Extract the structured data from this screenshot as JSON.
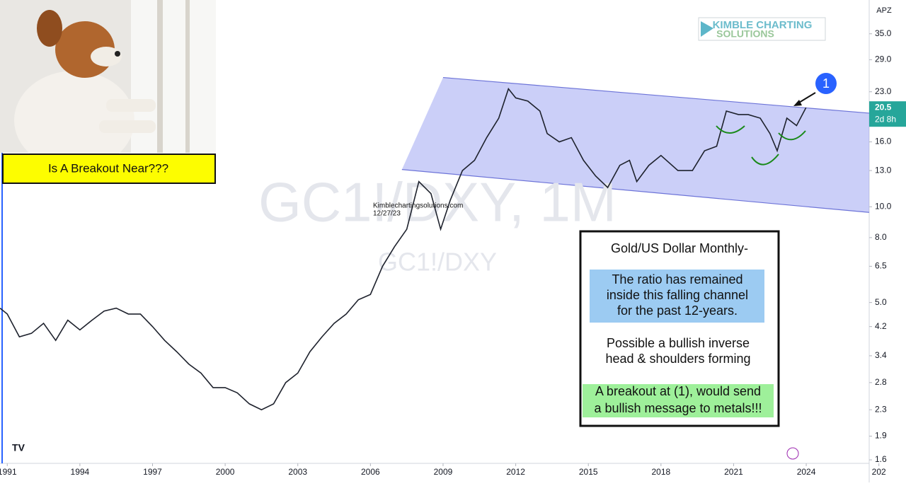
{
  "chart_data": {
    "type": "line",
    "watermark": "GC1!/DXY, 1M",
    "symbol": "GC1!/DXY",
    "currency": "APZ",
    "log_scale": true,
    "color": "#1e222d",
    "x": [
      1990.7,
      1991,
      1991.5,
      1992,
      1992.5,
      1993,
      1993.5,
      1994,
      1994.5,
      1995,
      1995.5,
      1996,
      1996.5,
      1997,
      1997.5,
      1998,
      1998.5,
      1999,
      1999.5,
      2000,
      2000.5,
      2001,
      2001.5,
      2002,
      2002.5,
      2003,
      2003.5,
      2004,
      2004.5,
      2005,
      2005.5,
      2006,
      2006.5,
      2007,
      2007.5,
      2008,
      2008.5,
      2008.9,
      2009.3,
      2009.8,
      2010.3,
      2010.8,
      2011.3,
      2011.7,
      2012,
      2012.5,
      2013,
      2013.3,
      2013.8,
      2014.3,
      2014.8,
      2015.3,
      2015.8,
      2016.3,
      2016.7,
      2017,
      2017.5,
      2018,
      2018.7,
      2019.3,
      2019.8,
      2020.3,
      2020.7,
      2021.2,
      2021.6,
      2022.1,
      2022.5,
      2022.8,
      2023.2,
      2023.6,
      2023.99
    ],
    "values": [
      4.8,
      4.6,
      3.9,
      4.0,
      4.3,
      3.8,
      4.4,
      4.1,
      4.4,
      4.7,
      4.8,
      4.6,
      4.6,
      4.2,
      3.8,
      3.5,
      3.2,
      3.0,
      2.7,
      2.7,
      2.6,
      2.4,
      2.3,
      2.4,
      2.8,
      3.0,
      3.5,
      3.9,
      4.3,
      4.6,
      5.1,
      5.3,
      6.5,
      7.5,
      8.5,
      12.0,
      11.0,
      8.5,
      10.5,
      13.0,
      14.0,
      16.5,
      19.0,
      23.5,
      22.0,
      21.5,
      20.0,
      17.0,
      16.0,
      16.5,
      14.0,
      12.5,
      11.5,
      13.5,
      14.0,
      12.0,
      13.5,
      14.5,
      13.0,
      13.0,
      15.0,
      15.5,
      20.0,
      19.5,
      19.5,
      19.0,
      17.0,
      15.0,
      19.0,
      18.0,
      20.5
    ],
    "xlim": [
      1990.7,
      2026.6
    ],
    "ylim": [
      1.56,
      44.7
    ],
    "xticks": [
      1991,
      1994,
      1997,
      2000,
      2003,
      2006,
      2009,
      2012,
      2015,
      2018,
      2021,
      2024,
      {
        "value": 2027,
        "label": "202"
      }
    ],
    "yticks": [
      {
        "value": 35,
        "label": "35.0"
      },
      {
        "value": 29,
        "label": "29.0"
      },
      {
        "value": 23,
        "label": "23.0"
      },
      {
        "value": 16,
        "label": "16.0"
      },
      {
        "value": 13,
        "label": "13.0"
      },
      {
        "value": 10,
        "label": "10.0"
      },
      {
        "value": 8,
        "label": "8.0"
      },
      6.5,
      {
        "value": 5,
        "label": "5.0"
      },
      4.2,
      3.4,
      2.8,
      2.3,
      1.9,
      1.6
    ],
    "price_badge": {
      "value": 20.5,
      "countdown": "2d 8h"
    },
    "channel": {
      "color": "#8c94f0",
      "upper": {
        "x": [
          2009,
          2026.6
        ],
        "values": [
          25.5,
          19.7
        ]
      },
      "lower": {
        "x": [
          2007.3,
          2026.6
        ],
        "values": [
          13.1,
          9.6
        ]
      }
    },
    "credit": {
      "site": "Kimblechartingsolutions.com",
      "date": "12/27/23"
    },
    "marker": "1"
  },
  "photo_caption": "Is A Breakout Near???",
  "logo": {
    "line1": "KIMBLE CHARTING",
    "line2": "SOLUTIONS"
  },
  "note": {
    "heading": "Gold/US Dollar Monthly-",
    "channel_text": [
      "The ratio has remained",
      "inside this falling channel",
      "for the past 12-years."
    ],
    "pattern_text": [
      "Possible a bullish inverse",
      "head & shoulders forming"
    ],
    "breakout_text": [
      "A breakout at (1), would send",
      "a bullish message to metals!!!"
    ]
  }
}
